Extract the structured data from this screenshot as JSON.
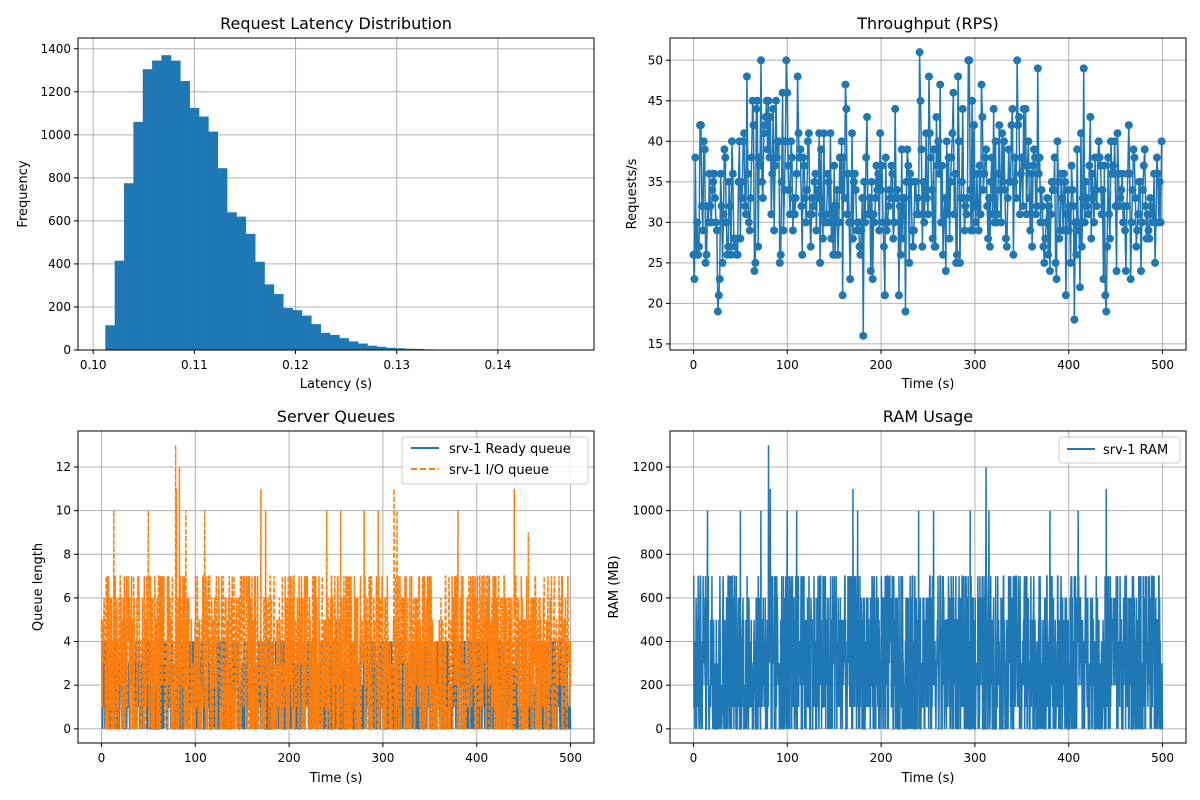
{
  "figure": {
    "background": "#ffffff",
    "grid_color": "#b0b0b0"
  },
  "chart_data": [
    {
      "type": "bar",
      "subtype": "histogram",
      "title": "Request Latency Distribution",
      "xlabel": "Latency (s)",
      "ylabel": "Frequency",
      "xlim": [
        0.0985,
        0.1495
      ],
      "ylim": [
        0,
        1450
      ],
      "xticks": [
        0.1,
        0.11,
        0.12,
        0.13,
        0.14
      ],
      "xtick_labels": [
        "0.10",
        "0.11",
        "0.12",
        "0.13",
        "0.14"
      ],
      "yticks": [
        0,
        200,
        400,
        600,
        800,
        1000,
        1200,
        1400
      ],
      "ytick_labels": [
        "0",
        "200",
        "400",
        "600",
        "800",
        "1000",
        "1200",
        "1400"
      ],
      "grid": true,
      "color": "#1f77b4",
      "bin_start": 0.1012,
      "bin_width": 0.000925,
      "values": [
        115,
        415,
        775,
        1060,
        1305,
        1345,
        1370,
        1345,
        1250,
        1125,
        1085,
        1015,
        845,
        640,
        620,
        540,
        410,
        305,
        260,
        195,
        185,
        160,
        120,
        80,
        70,
        55,
        40,
        30,
        20,
        15,
        10,
        8,
        6,
        5,
        3,
        2,
        2,
        1,
        1,
        1,
        1,
        0,
        0,
        0,
        0,
        0,
        0,
        1,
        0,
        1
      ]
    },
    {
      "type": "line",
      "title": "Throughput (RPS)",
      "xlabel": "Time (s)",
      "ylabel": "Requests/s",
      "xlim": [
        -25,
        525
      ],
      "ylim": [
        14.25,
        52.75
      ],
      "xticks": [
        0,
        100,
        200,
        300,
        400,
        500
      ],
      "xtick_labels": [
        "0",
        "100",
        "200",
        "300",
        "400",
        "500"
      ],
      "yticks": [
        15,
        20,
        25,
        30,
        35,
        40,
        45,
        50
      ],
      "ytick_labels": [
        "15",
        "20",
        "25",
        "30",
        "35",
        "40",
        "45",
        "50"
      ],
      "grid": true,
      "marker": "circle",
      "color": "#1f77b4",
      "series": [
        {
          "x_start": 0,
          "x_step": 1,
          "values": [
            26,
            23,
            38,
            26,
            30,
            26,
            27,
            42,
            42,
            32,
            29,
            40,
            39,
            25,
            26,
            32,
            30,
            36,
            32,
            30,
            34,
            35,
            36,
            33,
            30,
            29,
            19,
            21,
            23,
            36,
            32,
            25,
            31,
            39,
            38,
            30,
            26,
            27,
            35,
            32,
            26,
            40,
            36,
            28,
            27,
            28,
            26,
            26,
            35,
            40,
            28,
            35,
            33,
            40,
            41,
            32,
            31,
            48,
            36,
            30,
            29,
            33,
            38,
            45,
            42,
            24,
            25,
            44,
            45,
            27,
            38,
            37,
            50,
            35,
            33,
            41,
            42,
            43,
            45,
            39,
            45,
            38,
            43,
            31,
            36,
            44,
            29,
            37,
            45,
            38,
            40,
            40,
            25,
            26,
            35,
            46,
            29,
            34,
            40,
            50,
            46,
            37,
            34,
            31,
            40,
            38,
            29,
            33,
            31,
            33,
            36,
            48,
            41,
            38,
            39,
            32,
            26,
            38,
            37,
            33,
            30,
            34,
            40,
            41,
            31,
            27,
            31,
            33,
            32,
            35,
            36,
            29,
            34,
            33,
            41,
            25,
            39,
            31,
            28,
            41,
            30,
            30,
            31,
            36,
            35,
            30,
            41,
            28,
            32,
            26,
            37,
            26,
            32,
            34,
            26,
            30,
            38,
            34,
            40,
            21,
            38,
            33,
            47,
            44,
            31,
            36,
            30,
            23,
            30,
            41,
            28,
            35,
            36,
            34,
            29,
            30,
            30,
            27,
            26,
            29,
            33,
            16,
            35,
            30,
            38,
            43,
            31,
            31,
            33,
            24,
            35,
            23,
            31,
            30,
            33,
            37,
            34,
            36,
            29,
            41,
            34,
            37,
            30,
            27,
            21,
            38,
            29,
            30,
            32,
            34,
            33,
            37,
            36,
            28,
            30,
            44,
            33,
            34,
            33,
            21,
            32,
            26,
            39,
            28,
            33,
            33,
            19,
            35,
            39,
            37,
            25,
            36,
            35,
            29,
            27,
            29,
            35,
            35,
            31,
            33,
            31,
            51,
            45,
            39,
            27,
            35,
            30,
            34,
            41,
            33,
            31,
            48,
            41,
            38,
            34,
            28,
            39,
            27,
            27,
            43,
            37,
            40,
            36,
            47,
            30,
            37,
            26,
            31,
            33,
            24,
            40,
            31,
            38,
            28,
            35,
            38,
            41,
            46,
            31,
            36,
            25,
            26,
            48,
            40,
            25,
            33,
            35,
            44,
            33,
            29,
            32,
            31,
            33,
            50,
            50,
            34,
            29,
            45,
            29,
            42,
            32,
            30,
            36,
            32,
            29,
            37,
            31,
            47,
            43,
            34,
            36,
            38,
            39,
            32,
            28,
            33,
            27,
            35,
            38,
            31,
            44,
            30,
            40,
            30,
            31,
            36,
            42,
            34,
            30,
            41,
            35,
            40,
            34,
            28,
            27,
            33,
            39,
            35,
            35,
            42,
            44,
            26,
            35,
            38,
            33,
            50,
            42,
            43,
            31,
            36,
            38,
            32,
            44,
            37,
            44,
            31,
            37,
            40,
            33,
            29,
            36,
            27,
            37,
            39,
            38,
            31,
            32,
            49,
            36,
            38,
            30,
            34,
            32,
            27,
            25,
            28,
            30,
            33,
            26,
            32,
            24,
            31,
            35,
            34,
            34,
            38,
            25,
            23,
            40,
            35,
            28,
            29,
            36,
            33,
            29,
            36,
            35,
            21,
            31,
            34,
            29,
            32,
            25,
            37,
            34,
            32,
            18,
            30,
            26,
            39,
            30,
            29,
            22,
            41,
            27,
            33,
            49,
            30,
            35,
            32,
            33,
            31,
            37,
            43,
            28,
            36,
            33,
            30,
            38,
            34,
            32,
            38,
            40,
            38,
            37,
            31,
            34,
            23,
            37,
            21,
            19,
            27,
            38,
            31,
            28,
            40,
            36,
            37,
            36,
            40,
            32,
            24,
            41,
            36,
            32,
            33,
            34,
            36,
            30,
            32,
            29,
            24,
            32,
            36,
            42,
            36,
            23,
            30,
            34,
            39,
            38,
            33,
            27,
            29,
            31,
            35,
            35,
            24,
            30,
            34,
            37,
            39,
            32,
            28,
            31,
            29,
            28,
            33,
            32,
            31,
            30,
            36,
            25,
            30,
            38,
            36,
            30,
            35,
            30,
            40
          ]
        }
      ]
    },
    {
      "type": "line",
      "title": "Server Queues",
      "xlabel": "Time (s)",
      "ylabel": "Queue length",
      "xlim": [
        -25,
        525
      ],
      "ylim": [
        -0.65,
        13.65
      ],
      "xticks": [
        0,
        100,
        200,
        300,
        400,
        500
      ],
      "xtick_labels": [
        "0",
        "100",
        "200",
        "300",
        "400",
        "500"
      ],
      "yticks": [
        0,
        2,
        4,
        6,
        8,
        10,
        12
      ],
      "ytick_labels": [
        "0",
        "2",
        "4",
        "6",
        "8",
        "10",
        "12"
      ],
      "grid": true,
      "legend": "top-right",
      "series": [
        {
          "name": "srv-1 Ready queue",
          "color": "#1f77b4",
          "linestyle": "solid",
          "x_range": [
            0,
            500
          ],
          "typical_range": [
            0,
            4
          ],
          "peaks": [
            [
              100,
              5
            ],
            [
              250,
              5
            ],
            [
              350,
              5
            ]
          ]
        },
        {
          "name": "srv-1 I/O queue",
          "color": "#ff7f0e",
          "linestyle": "dashed",
          "x_range": [
            0,
            500
          ],
          "typical_range": [
            0,
            7
          ],
          "peaks": [
            [
              13,
              10
            ],
            [
              50,
              10
            ],
            [
              79,
              13
            ],
            [
              80,
              11
            ],
            [
              83,
              12
            ],
            [
              90,
              10
            ],
            [
              110,
              10
            ],
            [
              170,
              11
            ],
            [
              175,
              10
            ],
            [
              240,
              10
            ],
            [
              255,
              10
            ],
            [
              280,
              10
            ],
            [
              295,
              10
            ],
            [
              312,
              11
            ],
            [
              315,
              10
            ],
            [
              380,
              10
            ],
            [
              440,
              11
            ],
            [
              455,
              9
            ]
          ]
        }
      ]
    },
    {
      "type": "line",
      "title": "RAM Usage",
      "xlabel": "Time (s)",
      "ylabel": "RAM (MB)",
      "xlim": [
        -25,
        525
      ],
      "ylim": [
        -65,
        1365
      ],
      "xticks": [
        0,
        100,
        200,
        300,
        400,
        500
      ],
      "xtick_labels": [
        "0",
        "100",
        "200",
        "300",
        "400",
        "500"
      ],
      "yticks": [
        0,
        200,
        400,
        600,
        800,
        1000,
        1200
      ],
      "ytick_labels": [
        "0",
        "200",
        "400",
        "600",
        "800",
        "1000",
        "1200"
      ],
      "grid": true,
      "legend": "top-right",
      "series": [
        {
          "name": "srv-1 RAM",
          "color": "#1f77b4",
          "linestyle": "solid",
          "x_range": [
            0,
            500
          ],
          "typical_range": [
            0,
            700
          ],
          "peaks": [
            [
              15,
              1000
            ],
            [
              50,
              1000
            ],
            [
              72,
              1000
            ],
            [
              80,
              1300
            ],
            [
              82,
              1100
            ],
            [
              100,
              1000
            ],
            [
              110,
              1000
            ],
            [
              170,
              1100
            ],
            [
              175,
              1000
            ],
            [
              240,
              1000
            ],
            [
              256,
              1000
            ],
            [
              295,
              1000
            ],
            [
              312,
              1200
            ],
            [
              315,
              1000
            ],
            [
              380,
              1000
            ],
            [
              410,
              1000
            ],
            [
              440,
              1100
            ]
          ]
        }
      ]
    }
  ]
}
